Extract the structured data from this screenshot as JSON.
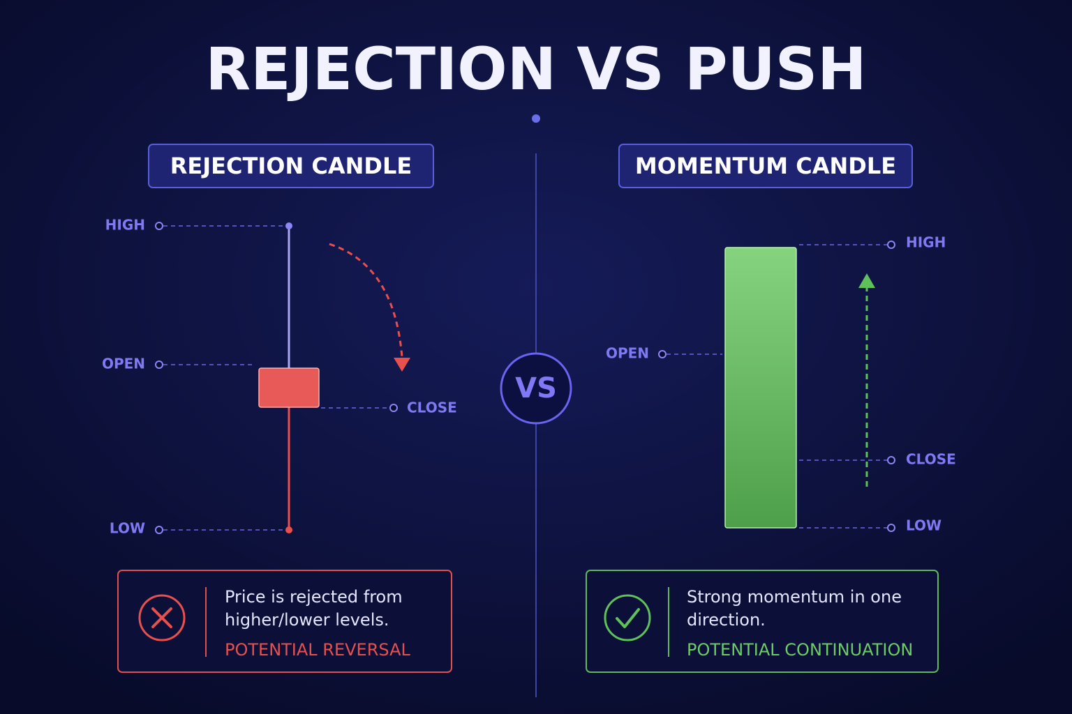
{
  "title": "REJECTION VS PUSH",
  "vs": "VS",
  "left": {
    "badge": "REJECTION CANDLE",
    "labels": {
      "high": "HIGH",
      "open": "OPEN",
      "close": "CLOSE",
      "low": "LOW"
    },
    "description": [
      "Price is rejected from",
      "higher/lower levels."
    ],
    "verdict": "POTENTIAL REVERSAL"
  },
  "right": {
    "badge": "MOMENTUM CANDLE",
    "labels": {
      "high": "HIGH",
      "open": "OPEN",
      "close": "CLOSE",
      "low": "LOW"
    },
    "description": [
      "Strong momentum in one",
      "direction."
    ],
    "verdict": "POTENTIAL CONTINUATION"
  }
}
